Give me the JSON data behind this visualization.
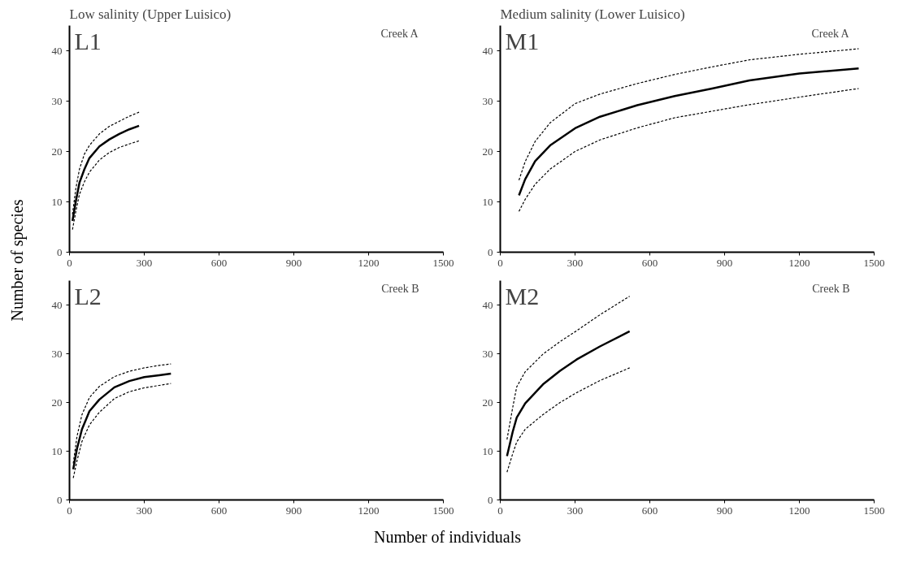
{
  "chart_data": [
    {
      "type": "line",
      "title": "Low salinity (Upper Luisico)",
      "ylabel": "Number of species",
      "annotations": [
        "L1",
        "Creek A"
      ],
      "xlim": [
        0,
        1500
      ],
      "ylim": [
        0,
        45
      ],
      "xticks": [
        0,
        300,
        600,
        900,
        1200,
        1500
      ],
      "yticks": [
        0,
        10,
        20,
        30,
        40
      ],
      "grid": false,
      "marker": "none",
      "x": [
        12,
        25,
        40,
        60,
        80,
        120,
        160,
        200,
        240,
        279
      ],
      "series": [
        {
          "color": "#000000",
          "line_style": "solid",
          "values": [
            6.2,
            10,
            13.8,
            16.5,
            18.7,
            21,
            22.4,
            23.5,
            24.4,
            25.1
          ]
        },
        {
          "color": "#000000",
          "line_style": "dashed",
          "values": [
            7.5,
            12.5,
            16.5,
            19.5,
            21.2,
            23.5,
            25,
            26,
            27,
            27.8
          ]
        },
        {
          "color": "#000000",
          "line_style": "dashed",
          "values": [
            4.5,
            8,
            11.5,
            14,
            15.9,
            18.3,
            19.8,
            20.8,
            21.5,
            22.1
          ]
        }
      ]
    },
    {
      "type": "line",
      "title": "Medium salinity (Lower Luisico)",
      "annotations": [
        "M1",
        "Creek A"
      ],
      "xlim": [
        0,
        1500
      ],
      "ylim": [
        0,
        45
      ],
      "xticks": [
        0,
        300,
        600,
        900,
        1200,
        1500
      ],
      "yticks": [
        0,
        10,
        20,
        30,
        40
      ],
      "grid": false,
      "marker": "none",
      "x": [
        75,
        100,
        140,
        200,
        300,
        400,
        550,
        700,
        850,
        1000,
        1200,
        1438
      ],
      "series": [
        {
          "color": "#000000",
          "line_style": "solid",
          "values": [
            11.3,
            14.5,
            18.1,
            21.2,
            24.6,
            26.9,
            29.2,
            31,
            32.5,
            34.1,
            35.5,
            36.5
          ]
        },
        {
          "color": "#000000",
          "line_style": "dashed",
          "values": [
            14.3,
            18,
            22,
            25.7,
            29.5,
            31.4,
            33.5,
            35.3,
            36.8,
            38.2,
            39.3,
            40.4
          ]
        },
        {
          "color": "#000000",
          "line_style": "dashed",
          "values": [
            8.1,
            10.5,
            13.5,
            16.5,
            20,
            22.3,
            24.7,
            26.7,
            28,
            29.3,
            30.8,
            32.5
          ]
        }
      ]
    },
    {
      "type": "line",
      "xlabel": "Number of individuals",
      "annotations": [
        "L2",
        "Creek B"
      ],
      "xlim": [
        0,
        1500
      ],
      "ylim": [
        0,
        45
      ],
      "xticks": [
        0,
        300,
        600,
        900,
        1200,
        1500
      ],
      "yticks": [
        0,
        10,
        20,
        30,
        40
      ],
      "grid": false,
      "marker": "none",
      "x": [
        15,
        30,
        50,
        80,
        120,
        180,
        240,
        300,
        360,
        407
      ],
      "series": [
        {
          "color": "#000000",
          "line_style": "solid",
          "values": [
            6.3,
            10.5,
            14.5,
            18.2,
            20.6,
            23.1,
            24.4,
            25.2,
            25.6,
            25.9
          ]
        },
        {
          "color": "#000000",
          "line_style": "dashed",
          "values": [
            7.5,
            13,
            17.5,
            21,
            23.3,
            25.3,
            26.4,
            27.1,
            27.6,
            27.9
          ]
        },
        {
          "color": "#000000",
          "line_style": "dashed",
          "values": [
            4.5,
            8,
            12,
            15.4,
            18,
            20.8,
            22.2,
            23,
            23.5,
            23.9
          ]
        }
      ]
    },
    {
      "type": "line",
      "annotations": [
        "M2",
        "Creek B"
      ],
      "xlim": [
        0,
        1500
      ],
      "ylim": [
        0,
        45
      ],
      "xticks": [
        0,
        300,
        600,
        900,
        1200,
        1500
      ],
      "yticks": [
        0,
        10,
        20,
        30,
        40
      ],
      "grid": false,
      "marker": "none",
      "x": [
        27,
        50,
        66,
        100,
        171,
        240,
        306,
        400,
        519
      ],
      "series": [
        {
          "color": "#000000",
          "line_style": "solid",
          "values": [
            9,
            14,
            16.9,
            19.8,
            23.7,
            26.5,
            28.8,
            31.5,
            34.6
          ]
        },
        {
          "color": "#000000",
          "line_style": "dashed",
          "values": [
            12.4,
            19,
            23.2,
            26.3,
            29.9,
            32.5,
            34.7,
            38,
            41.8
          ]
        },
        {
          "color": "#000000",
          "line_style": "dashed",
          "values": [
            5.7,
            9.5,
            11.9,
            14.5,
            17.5,
            20,
            22,
            24.5,
            27.1
          ]
        }
      ]
    }
  ]
}
